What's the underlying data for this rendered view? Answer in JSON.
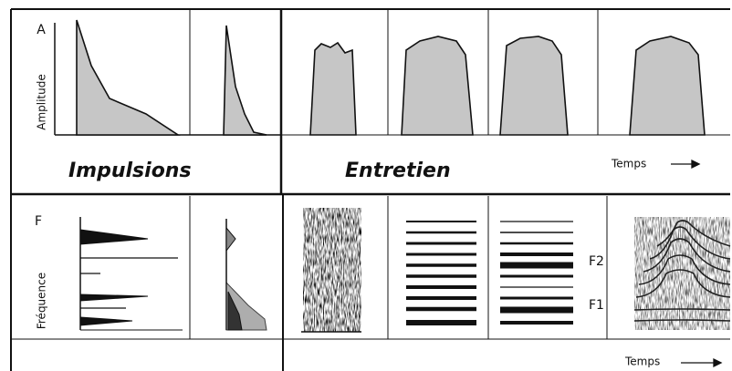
{
  "top": {
    "axis_letter": "A",
    "axis_label": "Amplitude",
    "left_title": "Impulsions",
    "right_title": "Entretien",
    "time_label": "Temps"
  },
  "bottom": {
    "axis_letter": "F",
    "axis_label": "Fréquence",
    "formant_2": "F2",
    "formant_1": "F1",
    "time_label": "Temps"
  }
}
